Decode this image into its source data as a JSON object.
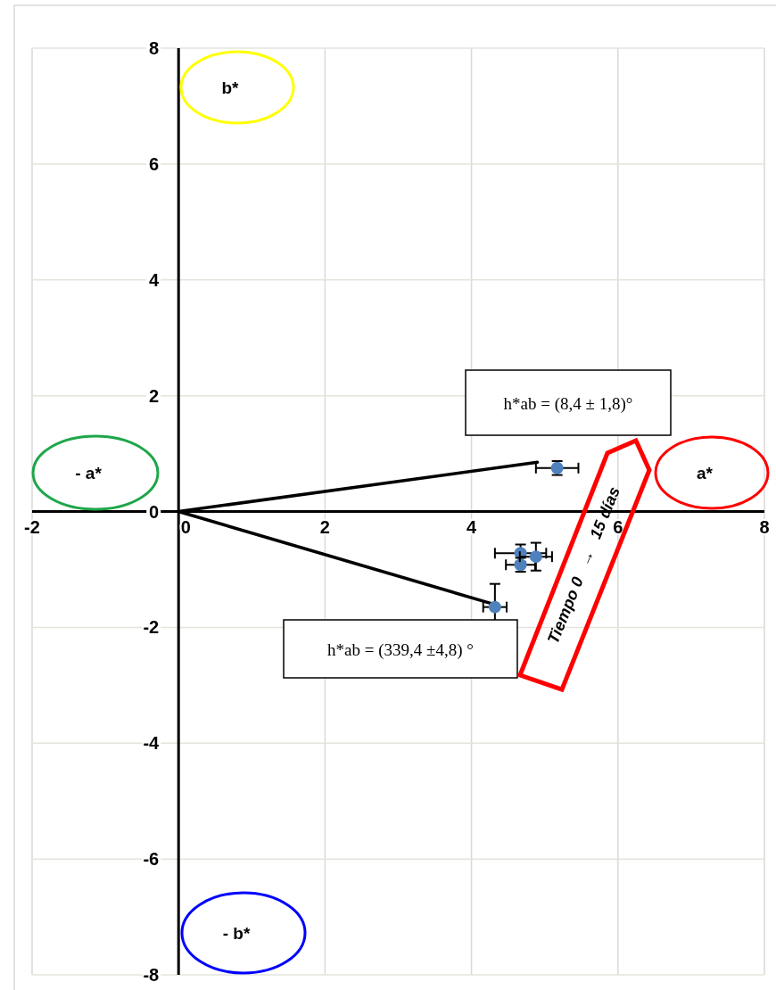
{
  "chart_data": {
    "type": "scatter",
    "xlim": [
      -2,
      8
    ],
    "xticks": [
      -2,
      0,
      2,
      4,
      6,
      8
    ],
    "ylim": [
      -8,
      8
    ],
    "yticks": [
      -8,
      -6,
      -4,
      -2,
      0,
      2,
      4,
      6,
      8
    ],
    "grid": true,
    "marker": "circle",
    "series": [
      {
        "type": "line",
        "color": "#000000",
        "x": [
          0,
          4.9
        ],
        "values": [
          0,
          0.85
        ],
        "marker": "none"
      },
      {
        "type": "line",
        "color": "#000000",
        "x": [
          0,
          4.3
        ],
        "values": [
          0,
          -1.6
        ],
        "marker": "none"
      },
      {
        "color": "#4f81bd",
        "x": [
          5.17,
          4.67,
          4.67,
          4.88,
          4.32
        ],
        "values": [
          0.75,
          -0.72,
          -0.92,
          -0.78,
          -1.65
        ],
        "errors": [
          0.12,
          0.15,
          0.12,
          0.24,
          0.4
        ],
        "xerrors": [
          0.29,
          0.35,
          0.2,
          0.22,
          0.16
        ]
      }
    ],
    "annotations": [
      "h*ab = (8,4 ± 1,8)°",
      "h*ab = (339,4 ±4,8) °",
      "b*",
      "- a*",
      "a*",
      "- b*",
      "Tiempo 0   →   15 días"
    ]
  }
}
